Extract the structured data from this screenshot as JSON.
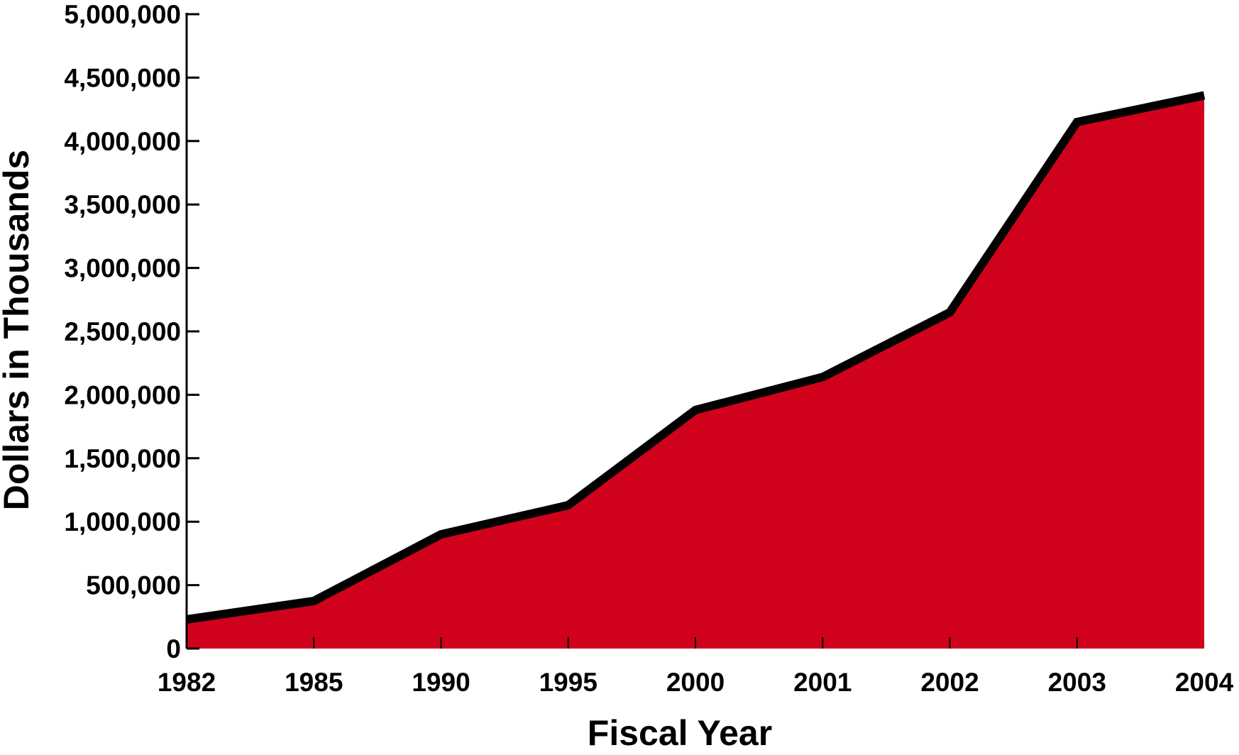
{
  "chart_data": {
    "type": "area",
    "title": "",
    "xlabel": "Fiscal Year",
    "ylabel": "Dollars in Thousands",
    "categories": [
      "1982",
      "1985",
      "1990",
      "1995",
      "2000",
      "2001",
      "2002",
      "2003",
      "2004"
    ],
    "series": [
      {
        "values": [
          230000,
          375000,
          900000,
          1130000,
          1880000,
          2140000,
          2650000,
          4150000,
          4360000
        ]
      }
    ],
    "ylim": [
      0,
      5000000
    ],
    "y_ticks": [
      0,
      500000,
      1000000,
      1500000,
      2000000,
      2500000,
      3000000,
      3500000,
      4000000,
      4500000,
      5000000
    ],
    "y_tick_labels": [
      "0",
      "500,000",
      "1,000,000",
      "1,500,000",
      "2,000,000",
      "2,500,000",
      "3,000,000",
      "3,500,000",
      "4,000,000",
      "4,500,000",
      "5,000,000"
    ],
    "grid": false,
    "legend": "none",
    "fill_color": "#d0021b",
    "line_color": "#000000"
  }
}
